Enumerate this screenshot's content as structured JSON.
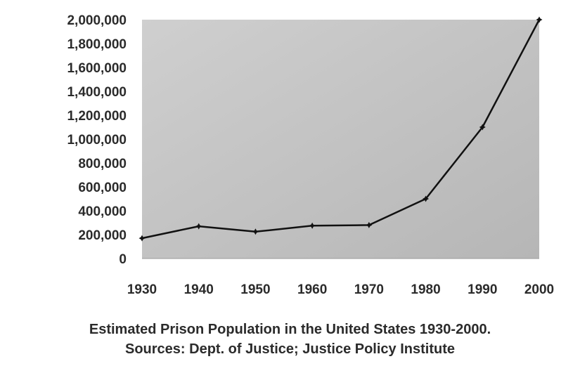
{
  "chart_data": {
    "type": "line",
    "x": [
      1930,
      1940,
      1950,
      1960,
      1970,
      1980,
      1990,
      2000
    ],
    "x_tick_labels": [
      "1930",
      "1940",
      "1950",
      "1960",
      "1970",
      "1980",
      "1990",
      "2000"
    ],
    "series": [
      {
        "values": [
          170000,
          270000,
          225000,
          275000,
          280000,
          500000,
          1100000,
          2000000
        ]
      }
    ],
    "y_ticks": [
      0,
      200000,
      400000,
      600000,
      800000,
      1000000,
      1200000,
      1400000,
      1600000,
      1800000,
      2000000
    ],
    "y_tick_labels": [
      "0",
      "200,000",
      "400,000",
      "600,000",
      "800,000",
      "1,000,000",
      "1,200,000",
      "1,400,000",
      "1,600,000",
      "1,800,000",
      "2,000,000"
    ],
    "ylim": [
      0,
      2000000
    ],
    "xlim": [
      1930,
      2000
    ],
    "grid": false,
    "legend": "none",
    "colors": {
      "plot_background": "#c4c4c4",
      "line": "#111111"
    }
  },
  "caption": {
    "title": "Estimated Prison Population in the United States 1930-2000.",
    "source": "Sources: Dept. of Justice; Justice Policy Institute"
  }
}
